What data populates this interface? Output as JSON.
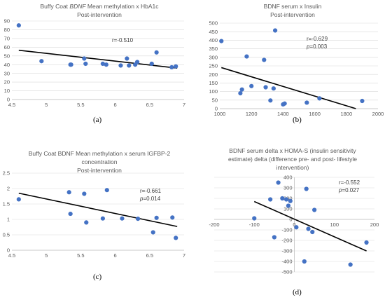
{
  "chart_data": [
    {
      "id": "a",
      "panel_label": "(a)",
      "type": "scatter",
      "title_parts": [
        "Buffy Coat ",
        "BDNF",
        " Mean methylation x HbA1c"
      ],
      "subtitle": "Post-intervention",
      "xlim": [
        4.5,
        7
      ],
      "ylim": [
        0,
        90
      ],
      "xticks": [
        4.5,
        5,
        5.5,
        6,
        6.5,
        7
      ],
      "yticks": [
        0,
        10,
        20,
        30,
        40,
        50,
        60,
        70,
        80,
        90
      ],
      "x": [
        4.6,
        4.93,
        5.35,
        5.36,
        5.55,
        5.57,
        5.82,
        5.87,
        6.08,
        6.17,
        6.2,
        6.29,
        6.32,
        6.53,
        6.6,
        6.82,
        6.88
      ],
      "y": [
        85,
        44,
        40,
        40,
        47,
        41,
        41,
        40,
        39,
        47,
        39,
        40,
        43,
        41,
        54,
        37,
        38
      ],
      "trendline": [
        [
          4.6,
          56.5
        ],
        [
          6.9,
          36
        ]
      ],
      "annotations": [
        "r=-0.510"
      ],
      "marker_color": "#4472C4"
    },
    {
      "id": "b",
      "panel_label": "(b)",
      "type": "scatter",
      "title_parts": [
        "BDNF serum x Insulin"
      ],
      "subtitle": "Post-intervention",
      "xlim": [
        1000,
        2000
      ],
      "ylim": [
        0,
        500
      ],
      "xticks": [
        1000,
        1200,
        1400,
        1600,
        1800,
        2000
      ],
      "yticks": [
        0,
        50,
        100,
        150,
        200,
        250,
        300,
        350,
        400,
        450,
        500
      ],
      "x": [
        1010,
        1130,
        1140,
        1170,
        1200,
        1280,
        1290,
        1320,
        1340,
        1350,
        1400,
        1410,
        1550,
        1630,
        1900
      ],
      "y": [
        395,
        90,
        112,
        305,
        132,
        285,
        125,
        48,
        118,
        457,
        25,
        30,
        35,
        60,
        45
      ],
      "trendline": [
        [
          1010,
          240
        ],
        [
          1860,
          0
        ]
      ],
      "annotations": [
        "r=-0.629",
        "p=0.003"
      ],
      "marker_color": "#4472C4"
    },
    {
      "id": "c",
      "panel_label": "(c)",
      "type": "scatter",
      "title_parts": [
        "Buffy Coat BDNF Mean methylation x serum IGFBP-2"
      ],
      "title_line2": "concentration",
      "subtitle": "Post-intervention",
      "xlim": [
        4.5,
        7
      ],
      "ylim": [
        0,
        2.5
      ],
      "xticks": [
        4.5,
        5,
        5.5,
        6,
        6.5,
        7
      ],
      "yticks": [
        0,
        0.5,
        1,
        1.5,
        2,
        2.5
      ],
      "x": [
        4.6,
        5.33,
        5.35,
        5.55,
        5.58,
        5.82,
        5.88,
        6.1,
        6.33,
        6.55,
        6.6,
        6.83,
        6.88
      ],
      "y": [
        1.65,
        1.88,
        1.18,
        1.83,
        0.9,
        1.03,
        1.95,
        1.03,
        1.02,
        0.58,
        1.05,
        1.06,
        0.4
      ],
      "trendline": [
        [
          4.6,
          1.85
        ],
        [
          6.9,
          0.77
        ]
      ],
      "annotations": [
        "r=-0.661",
        "p=0.014"
      ],
      "marker_color": "#4472C4"
    },
    {
      "id": "d",
      "panel_label": "(d)",
      "type": "scatter",
      "title_parts": [
        "BDNF serum delta x HOMA-S (insulin sensitivity"
      ],
      "title_line2": "estimate) delta (difference pre- and post- lifestyle",
      "title_line3": "intervention)",
      "xlim": [
        -200,
        200
      ],
      "ylim": [
        -500,
        400
      ],
      "xticks": [
        -200,
        -100,
        0,
        100,
        200
      ],
      "yticks": [
        -500,
        -400,
        -300,
        -200,
        -100,
        0,
        100,
        200,
        300,
        400
      ],
      "x": [
        -100,
        -60,
        -50,
        -40,
        -30,
        -20,
        -15,
        -10,
        5,
        25,
        30,
        35,
        45,
        50,
        140,
        180
      ],
      "y": [
        10,
        190,
        -170,
        350,
        200,
        190,
        130,
        175,
        -75,
        -400,
        290,
        -90,
        -120,
        90,
        -430,
        -220
      ],
      "trendline": [
        [
          -100,
          170
        ],
        [
          180,
          -300
        ]
      ],
      "annotations": [
        "r=-0.552",
        "p=0.027"
      ],
      "marker_color": "#4472C4"
    }
  ]
}
